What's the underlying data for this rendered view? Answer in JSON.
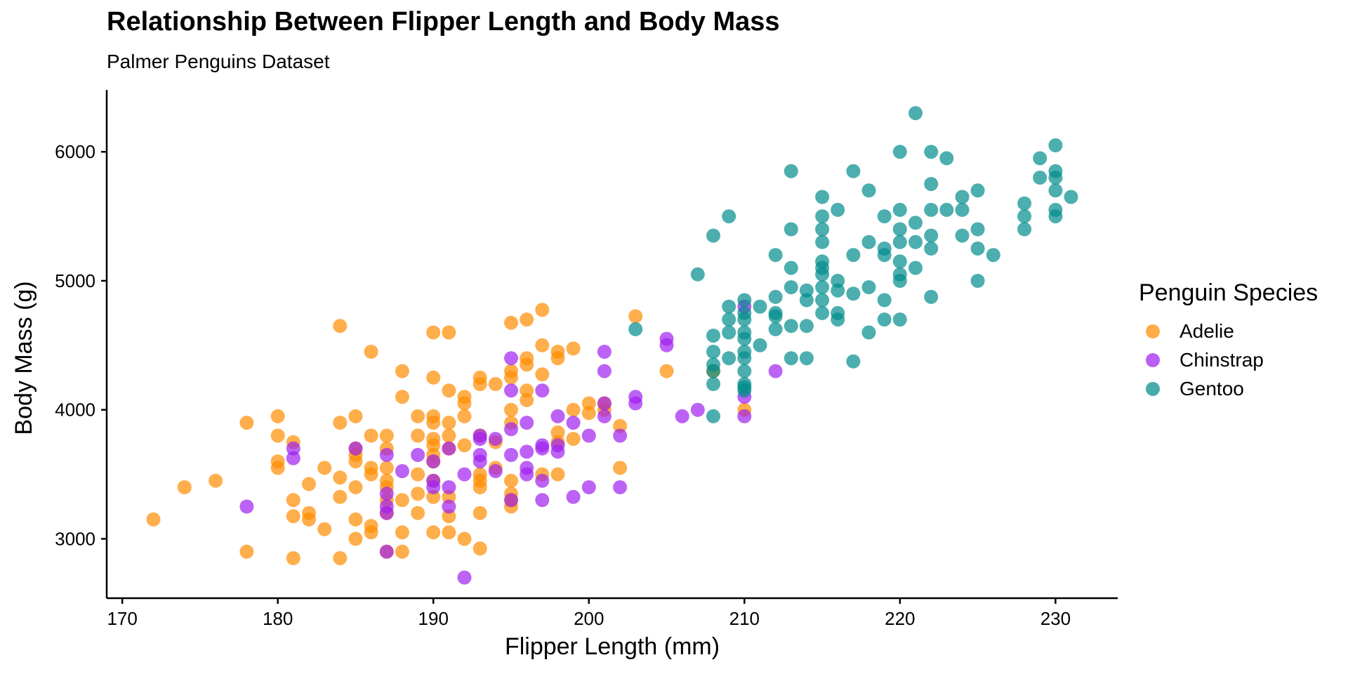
{
  "chart_data": {
    "type": "scatter",
    "title": "Relationship Between Flipper Length and Body Mass",
    "subtitle": "Palmer Penguins Dataset",
    "xlabel": "Flipper Length (mm)",
    "ylabel": "Body Mass (g)",
    "xlim": [
      169,
      234
    ],
    "ylim": [
      2540,
      6480
    ],
    "xticks": [
      170,
      180,
      190,
      200,
      210,
      220,
      230
    ],
    "yticks": [
      3000,
      4000,
      5000,
      6000
    ],
    "grid": false,
    "legend_title": "Penguin Species",
    "legend_position": "right",
    "series": [
      {
        "name": "Adelie",
        "color": "#FF8C00",
        "points": [
          [
            172,
            3150
          ],
          [
            174,
            3400
          ],
          [
            176,
            3450
          ],
          [
            178,
            3900
          ],
          [
            178,
            2900
          ],
          [
            180,
            3950
          ],
          [
            180,
            3800
          ],
          [
            180,
            3600
          ],
          [
            180,
            3550
          ],
          [
            181,
            3750
          ],
          [
            181,
            3300
          ],
          [
            181,
            3175
          ],
          [
            181,
            2850
          ],
          [
            182,
            3200
          ],
          [
            182,
            3150
          ],
          [
            182,
            3425
          ],
          [
            183,
            3075
          ],
          [
            183,
            3550
          ],
          [
            184,
            4650
          ],
          [
            184,
            3900
          ],
          [
            184,
            3475
          ],
          [
            184,
            3325
          ],
          [
            184,
            2850
          ],
          [
            185,
            3950
          ],
          [
            185,
            3700
          ],
          [
            185,
            3650
          ],
          [
            185,
            3600
          ],
          [
            185,
            3400
          ],
          [
            185,
            3150
          ],
          [
            185,
            3000
          ],
          [
            186,
            4450
          ],
          [
            186,
            3800
          ],
          [
            186,
            3550
          ],
          [
            186,
            3500
          ],
          [
            186,
            3100
          ],
          [
            186,
            3050
          ],
          [
            187,
            3800
          ],
          [
            187,
            3700
          ],
          [
            187,
            3550
          ],
          [
            187,
            3450
          ],
          [
            187,
            3400
          ],
          [
            187,
            3300
          ],
          [
            187,
            3200
          ],
          [
            187,
            2900
          ],
          [
            188,
            4300
          ],
          [
            188,
            4100
          ],
          [
            188,
            3300
          ],
          [
            188,
            3050
          ],
          [
            188,
            2900
          ],
          [
            189,
            3950
          ],
          [
            189,
            3800
          ],
          [
            189,
            3500
          ],
          [
            189,
            3350
          ],
          [
            189,
            3200
          ],
          [
            190,
            4600
          ],
          [
            190,
            4250
          ],
          [
            190,
            3950
          ],
          [
            190,
            3900
          ],
          [
            190,
            3775
          ],
          [
            190,
            3725
          ],
          [
            190,
            3650
          ],
          [
            190,
            3600
          ],
          [
            190,
            3450
          ],
          [
            190,
            3325
          ],
          [
            190,
            3050
          ],
          [
            191,
            4600
          ],
          [
            191,
            4150
          ],
          [
            191,
            3900
          ],
          [
            191,
            3800
          ],
          [
            191,
            3700
          ],
          [
            191,
            3325
          ],
          [
            191,
            3175
          ],
          [
            191,
            3050
          ],
          [
            192,
            4100
          ],
          [
            192,
            4050
          ],
          [
            192,
            3950
          ],
          [
            192,
            3725
          ],
          [
            192,
            3000
          ],
          [
            193,
            4250
          ],
          [
            193,
            4200
          ],
          [
            193,
            3800
          ],
          [
            193,
            3500
          ],
          [
            193,
            3450
          ],
          [
            193,
            3400
          ],
          [
            193,
            3200
          ],
          [
            193,
            2925
          ],
          [
            194,
            4200
          ],
          [
            194,
            3750
          ],
          [
            194,
            3550
          ],
          [
            195,
            4675
          ],
          [
            195,
            4300
          ],
          [
            195,
            4250
          ],
          [
            195,
            4000
          ],
          [
            195,
            3900
          ],
          [
            195,
            3450
          ],
          [
            195,
            3350
          ],
          [
            195,
            3300
          ],
          [
            195,
            3250
          ],
          [
            196,
            4700
          ],
          [
            196,
            4400
          ],
          [
            196,
            4350
          ],
          [
            196,
            4150
          ],
          [
            196,
            4075
          ],
          [
            197,
            4775
          ],
          [
            197,
            4500
          ],
          [
            197,
            4275
          ],
          [
            197,
            3500
          ],
          [
            198,
            4450
          ],
          [
            198,
            4400
          ],
          [
            198,
            3825
          ],
          [
            198,
            3750
          ],
          [
            198,
            3500
          ],
          [
            199,
            4475
          ],
          [
            199,
            4000
          ],
          [
            199,
            3775
          ],
          [
            200,
            4050
          ],
          [
            200,
            3975
          ],
          [
            201,
            4000
          ],
          [
            201,
            4050
          ],
          [
            202,
            3875
          ],
          [
            202,
            3550
          ],
          [
            203,
            4725
          ],
          [
            205,
            4300
          ],
          [
            208,
            4300
          ],
          [
            210,
            4000
          ]
        ]
      },
      {
        "name": "Chinstrap",
        "color": "#A020F0",
        "points": [
          [
            178,
            3250
          ],
          [
            181,
            3700
          ],
          [
            181,
            3625
          ],
          [
            185,
            3700
          ],
          [
            187,
            3650
          ],
          [
            187,
            3350
          ],
          [
            187,
            3250
          ],
          [
            187,
            3200
          ],
          [
            187,
            2900
          ],
          [
            188,
            3525
          ],
          [
            189,
            3650
          ],
          [
            190,
            3600
          ],
          [
            190,
            3450
          ],
          [
            190,
            3400
          ],
          [
            191,
            3700
          ],
          [
            191,
            3400
          ],
          [
            191,
            3250
          ],
          [
            192,
            3500
          ],
          [
            192,
            2700
          ],
          [
            193,
            3800
          ],
          [
            193,
            3775
          ],
          [
            193,
            3650
          ],
          [
            193,
            3600
          ],
          [
            194,
            3775
          ],
          [
            194,
            3525
          ],
          [
            195,
            4400
          ],
          [
            195,
            4150
          ],
          [
            195,
            3850
          ],
          [
            195,
            3650
          ],
          [
            195,
            3300
          ],
          [
            196,
            3900
          ],
          [
            196,
            3675
          ],
          [
            196,
            3550
          ],
          [
            196,
            3500
          ],
          [
            197,
            4150
          ],
          [
            197,
            3725
          ],
          [
            197,
            3700
          ],
          [
            197,
            3450
          ],
          [
            197,
            3300
          ],
          [
            198,
            3950
          ],
          [
            198,
            3725
          ],
          [
            198,
            3675
          ],
          [
            199,
            3900
          ],
          [
            199,
            3325
          ],
          [
            200,
            3800
          ],
          [
            200,
            3400
          ],
          [
            201,
            4450
          ],
          [
            201,
            4300
          ],
          [
            201,
            4050
          ],
          [
            201,
            3950
          ],
          [
            202,
            3800
          ],
          [
            202,
            3400
          ],
          [
            203,
            4100
          ],
          [
            203,
            4050
          ],
          [
            205,
            4550
          ],
          [
            205,
            4500
          ],
          [
            206,
            3950
          ],
          [
            207,
            4000
          ],
          [
            210,
            4800
          ],
          [
            210,
            4100
          ],
          [
            210,
            3950
          ],
          [
            212,
            4300
          ]
        ]
      },
      {
        "name": "Gentoo",
        "color": "#008B8B",
        "points": [
          [
            203,
            4625
          ],
          [
            207,
            5050
          ],
          [
            208,
            5350
          ],
          [
            208,
            4575
          ],
          [
            208,
            4450
          ],
          [
            208,
            4350
          ],
          [
            208,
            4300
          ],
          [
            208,
            4200
          ],
          [
            208,
            3950
          ],
          [
            209,
            5500
          ],
          [
            209,
            4800
          ],
          [
            209,
            4700
          ],
          [
            209,
            4600
          ],
          [
            209,
            4400
          ],
          [
            210,
            4850
          ],
          [
            210,
            4750
          ],
          [
            210,
            4700
          ],
          [
            210,
            4600
          ],
          [
            210,
            4550
          ],
          [
            210,
            4450
          ],
          [
            210,
            4400
          ],
          [
            210,
            4300
          ],
          [
            210,
            4200
          ],
          [
            210,
            4175
          ],
          [
            210,
            4150
          ],
          [
            211,
            4800
          ],
          [
            211,
            4500
          ],
          [
            212,
            5200
          ],
          [
            212,
            4875
          ],
          [
            212,
            4750
          ],
          [
            212,
            4725
          ],
          [
            212,
            4625
          ],
          [
            213,
            5850
          ],
          [
            213,
            5400
          ],
          [
            213,
            5100
          ],
          [
            213,
            4950
          ],
          [
            213,
            4650
          ],
          [
            213,
            4400
          ],
          [
            214,
            4925
          ],
          [
            214,
            4850
          ],
          [
            214,
            4650
          ],
          [
            214,
            4400
          ],
          [
            215,
            5650
          ],
          [
            215,
            5500
          ],
          [
            215,
            5400
          ],
          [
            215,
            5300
          ],
          [
            215,
            5150
          ],
          [
            215,
            5100
          ],
          [
            215,
            5050
          ],
          [
            215,
            4950
          ],
          [
            215,
            4850
          ],
          [
            215,
            4750
          ],
          [
            216,
            5550
          ],
          [
            216,
            5000
          ],
          [
            216,
            4925
          ],
          [
            216,
            4750
          ],
          [
            216,
            4700
          ],
          [
            217,
            5850
          ],
          [
            217,
            5200
          ],
          [
            217,
            4900
          ],
          [
            217,
            4375
          ],
          [
            218,
            5700
          ],
          [
            218,
            5300
          ],
          [
            218,
            4950
          ],
          [
            218,
            4600
          ],
          [
            219,
            5500
          ],
          [
            219,
            5250
          ],
          [
            219,
            5200
          ],
          [
            219,
            4850
          ],
          [
            219,
            4700
          ],
          [
            220,
            6000
          ],
          [
            220,
            5550
          ],
          [
            220,
            5400
          ],
          [
            220,
            5300
          ],
          [
            220,
            5150
          ],
          [
            220,
            5050
          ],
          [
            220,
            5000
          ],
          [
            220,
            4700
          ],
          [
            221,
            6300
          ],
          [
            221,
            5450
          ],
          [
            221,
            5300
          ],
          [
            221,
            5100
          ],
          [
            222,
            6000
          ],
          [
            222,
            5750
          ],
          [
            222,
            5550
          ],
          [
            222,
            5350
          ],
          [
            222,
            5250
          ],
          [
            222,
            4875
          ],
          [
            223,
            5950
          ],
          [
            223,
            5550
          ],
          [
            224,
            5650
          ],
          [
            224,
            5550
          ],
          [
            224,
            5350
          ],
          [
            225,
            5700
          ],
          [
            225,
            5400
          ],
          [
            225,
            5250
          ],
          [
            225,
            5000
          ],
          [
            226,
            5200
          ],
          [
            228,
            5600
          ],
          [
            228,
            5500
          ],
          [
            228,
            5400
          ],
          [
            229,
            5950
          ],
          [
            229,
            5800
          ],
          [
            230,
            6050
          ],
          [
            230,
            5850
          ],
          [
            230,
            5800
          ],
          [
            230,
            5700
          ],
          [
            230,
            5550
          ],
          [
            230,
            5500
          ],
          [
            231,
            5650
          ]
        ]
      }
    ]
  }
}
